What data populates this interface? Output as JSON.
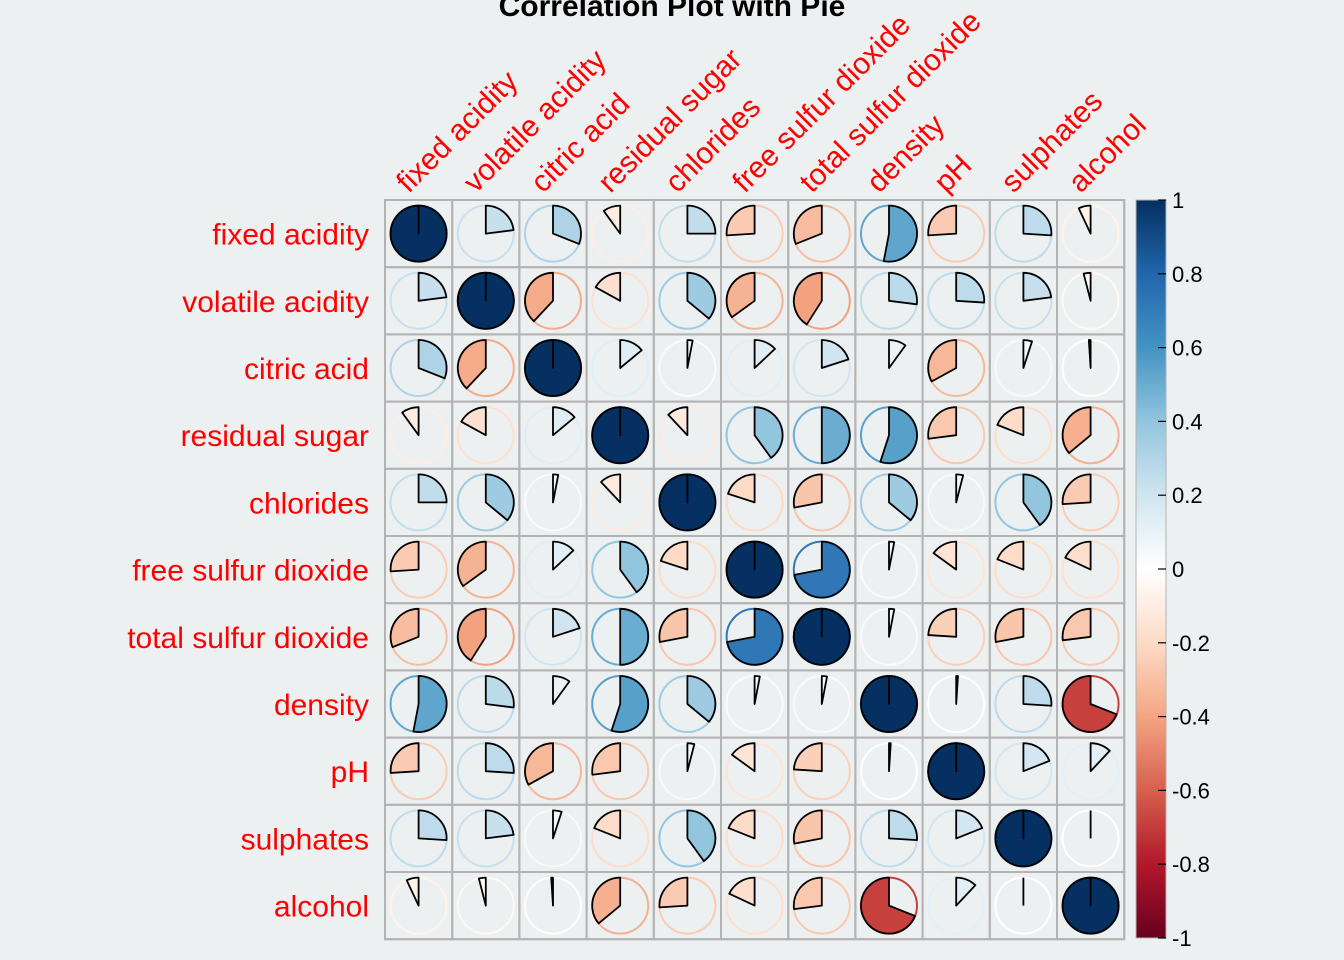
{
  "chart_data": {
    "type": "heatmap",
    "title": "Correlation Plot with Pie",
    "method": "pie",
    "variables": [
      "fixed acidity",
      "volatile acidity",
      "citric acid",
      "residual sugar",
      "chlorides",
      "free sulfur dioxide",
      "total sulfur dioxide",
      "density",
      "pH",
      "sulphates",
      "alcohol"
    ],
    "matrix": [
      [
        1.0,
        0.23,
        0.31,
        -0.1,
        0.25,
        -0.26,
        -0.31,
        0.53,
        -0.26,
        0.26,
        -0.07
      ],
      [
        0.23,
        1.0,
        -0.38,
        -0.17,
        0.36,
        -0.35,
        -0.41,
        0.27,
        0.26,
        0.23,
        -0.04
      ],
      [
        0.31,
        -0.38,
        1.0,
        0.14,
        0.03,
        0.13,
        0.2,
        0.1,
        -0.33,
        0.05,
        -0.01
      ],
      [
        -0.1,
        -0.17,
        0.14,
        1.0,
        -0.12,
        0.4,
        0.5,
        0.55,
        -0.27,
        -0.19,
        -0.36
      ],
      [
        0.25,
        0.36,
        0.03,
        -0.12,
        1.0,
        -0.2,
        -0.28,
        0.36,
        0.04,
        0.4,
        -0.26
      ],
      [
        -0.26,
        -0.35,
        0.13,
        0.4,
        -0.2,
        1.0,
        0.72,
        0.03,
        -0.15,
        -0.19,
        -0.18
      ],
      [
        -0.31,
        -0.41,
        0.2,
        0.5,
        -0.28,
        0.72,
        1.0,
        0.03,
        -0.24,
        -0.28,
        -0.27
      ],
      [
        0.53,
        0.27,
        0.1,
        0.55,
        0.36,
        0.03,
        0.03,
        1.0,
        0.01,
        0.26,
        -0.69
      ],
      [
        -0.26,
        0.26,
        -0.33,
        -0.27,
        0.04,
        -0.15,
        -0.24,
        0.01,
        1.0,
        0.19,
        0.12
      ],
      [
        0.26,
        0.23,
        0.05,
        -0.19,
        0.4,
        -0.19,
        -0.28,
        0.26,
        0.19,
        1.0,
        0.0
      ],
      [
        -0.07,
        -0.04,
        -0.01,
        -0.36,
        -0.26,
        -0.18,
        -0.27,
        -0.69,
        0.12,
        0.0,
        1.0
      ]
    ],
    "colorbar": {
      "range": [
        -1,
        1
      ],
      "ticks": [
        "1",
        "0.8",
        "0.6",
        "0.4",
        "0.2",
        "0",
        "-0.2",
        "-0.4",
        "-0.6",
        "-0.8",
        "-1"
      ],
      "colors": [
        "#67001f",
        "#b2182b",
        "#d6604d",
        "#f4a582",
        "#fddbc7",
        "#ffffff",
        "#d1e5f0",
        "#92c5de",
        "#4393c3",
        "#2166ac",
        "#053061"
      ]
    }
  }
}
